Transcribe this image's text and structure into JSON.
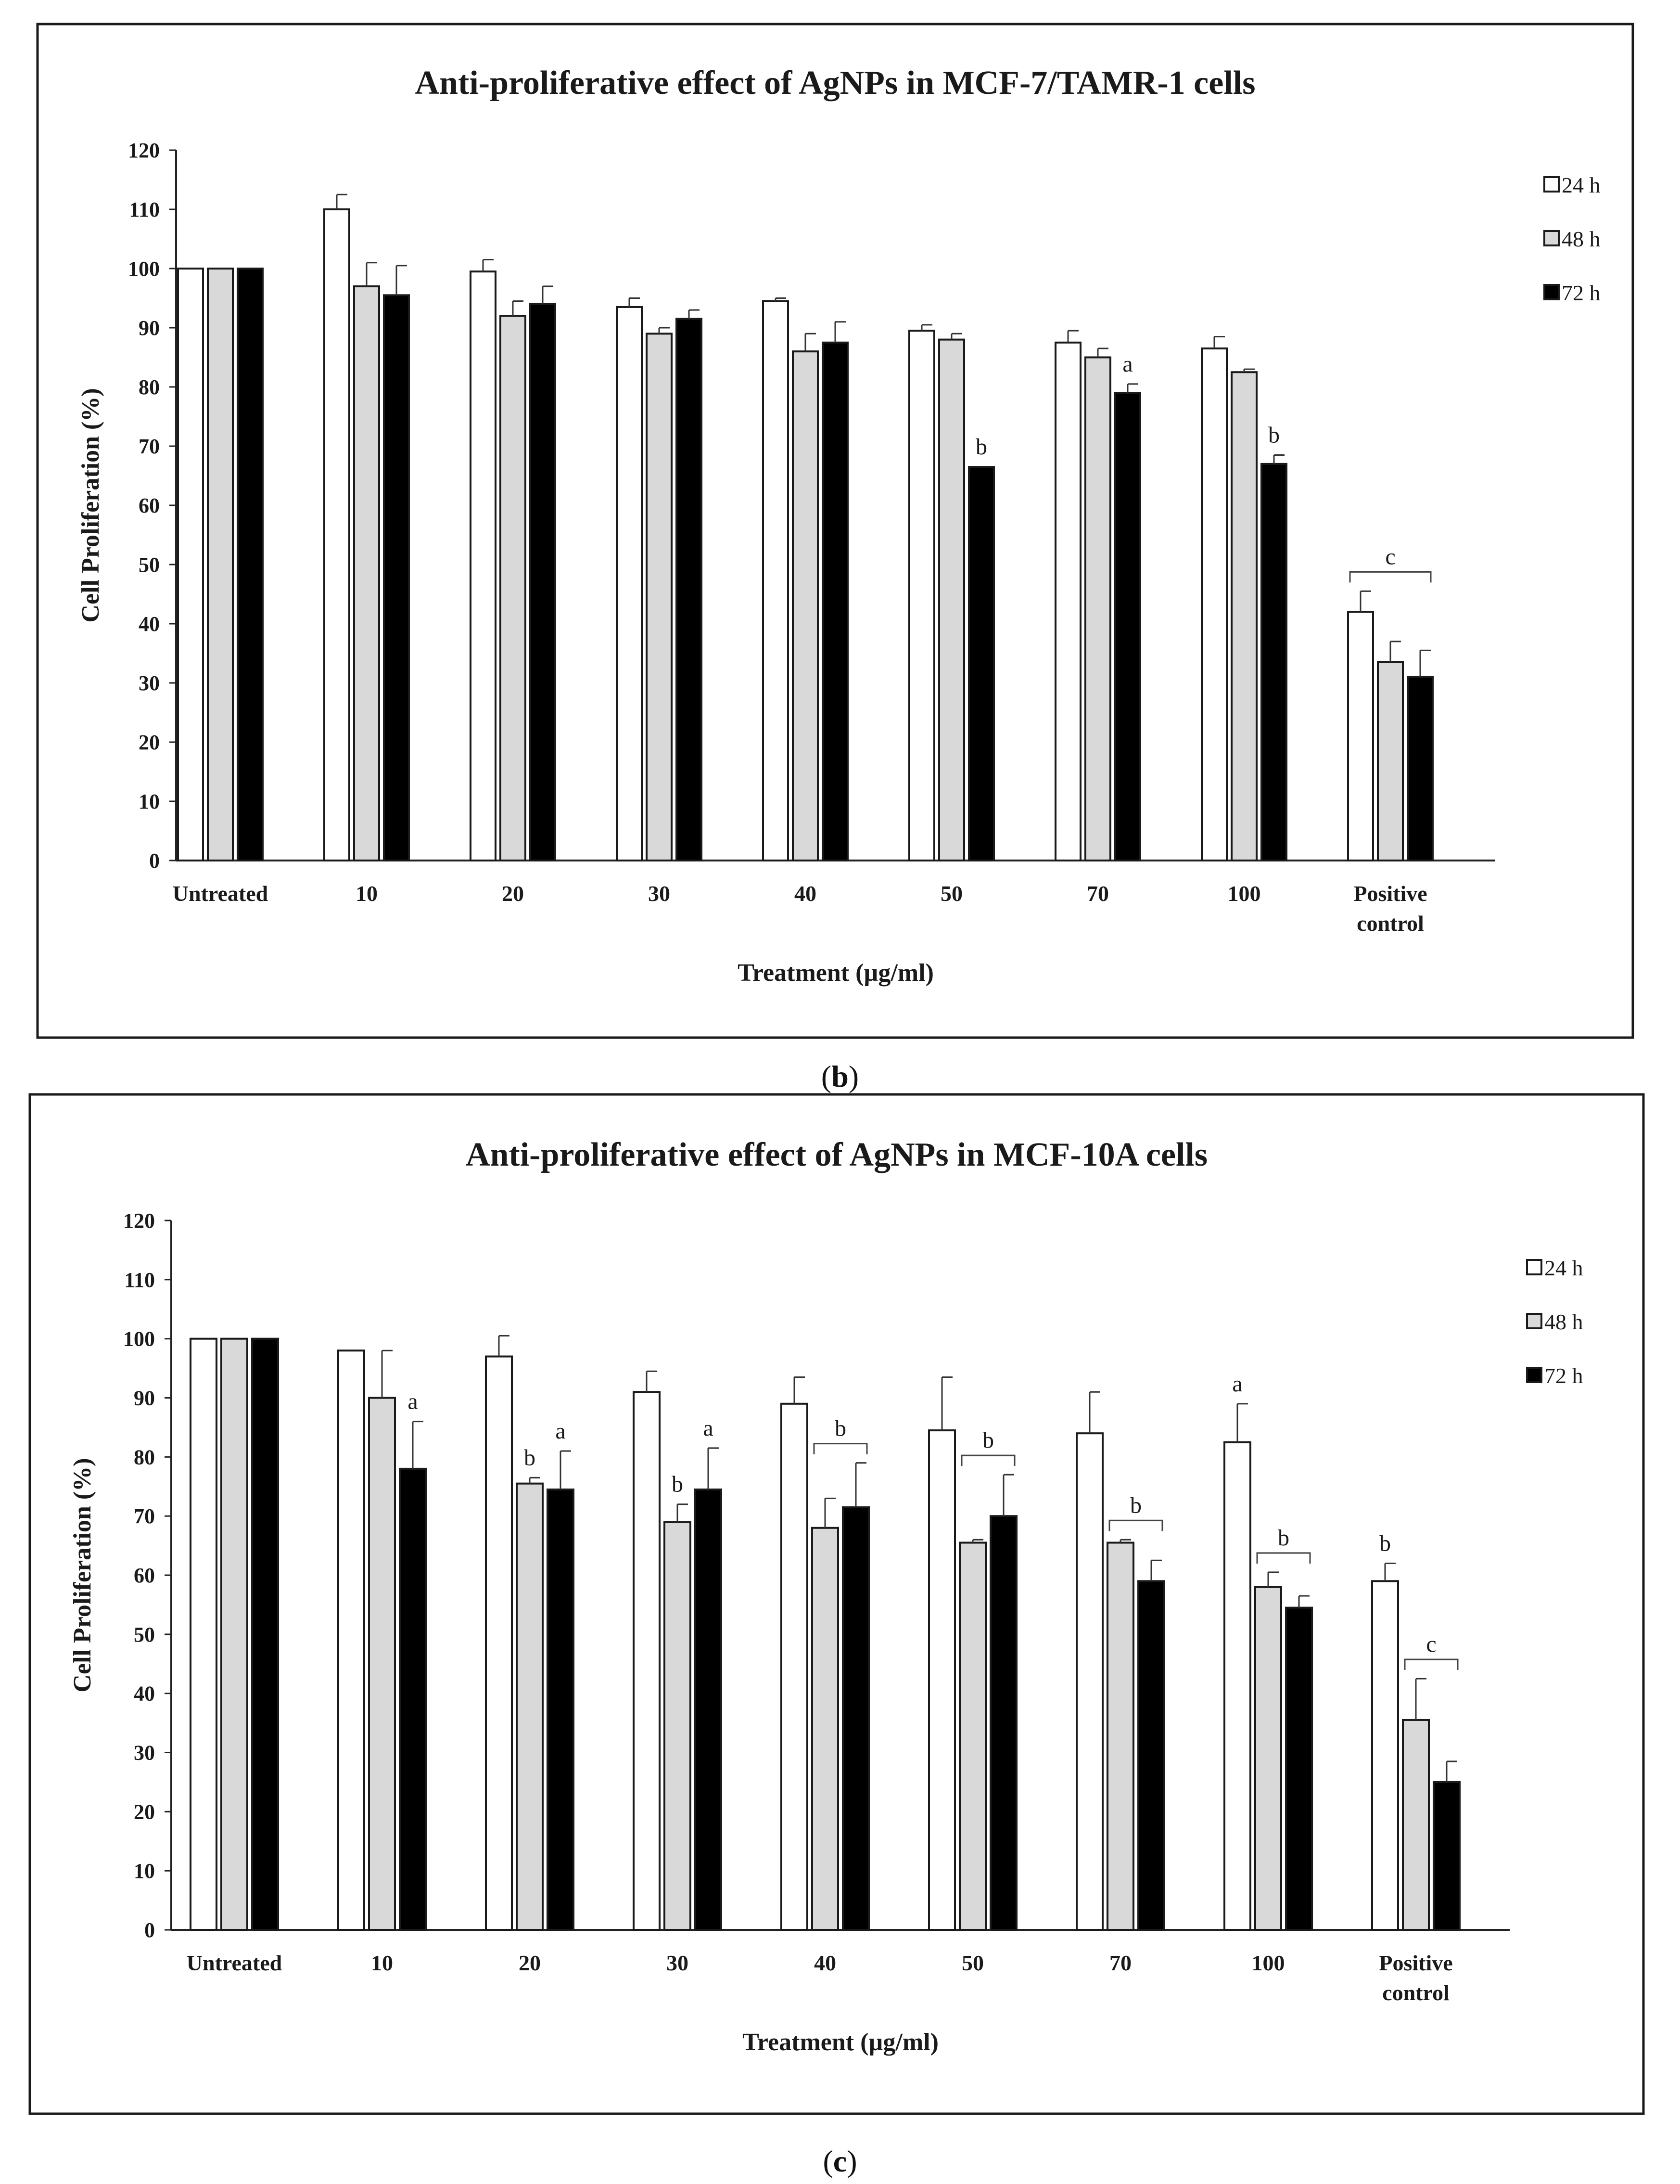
{
  "chart_data": [
    {
      "panel": "b",
      "type": "bar",
      "title": "Anti-proliferative effect of AgNPs in MCF-7/TAMR-1 cells",
      "xlabel": "Treatment (µg/ml)",
      "ylabel": "Cell Proliferation (%)",
      "ylim": [
        0,
        120
      ],
      "yticks": [
        0,
        10,
        20,
        30,
        40,
        50,
        60,
        70,
        80,
        90,
        100,
        110,
        120
      ],
      "categories": [
        "Untreated",
        "10",
        "20",
        "30",
        "40",
        "50",
        "70",
        "100",
        "Positive\ncontrol"
      ],
      "series": [
        {
          "name": "24 h",
          "color": "#ffffff",
          "values": [
            100,
            110,
            99.5,
            93.5,
            94.5,
            89.5,
            87.5,
            86.5,
            42
          ],
          "errors": [
            0,
            2.5,
            2,
            1.5,
            0.5,
            1,
            2,
            2,
            3.5
          ]
        },
        {
          "name": "48 h",
          "color": "#d9d9d9",
          "values": [
            100,
            97,
            92,
            89,
            86,
            88,
            85,
            82.5,
            33.5
          ],
          "errors": [
            0,
            4,
            2.5,
            1,
            3,
            1,
            1.5,
            0.5,
            3.5
          ]
        },
        {
          "name": "72 h",
          "color": "#000000",
          "values": [
            100,
            95.5,
            94,
            91.5,
            87.5,
            66.5,
            79,
            67,
            31
          ],
          "errors": [
            0,
            5,
            3,
            1.5,
            3.5,
            0,
            1.5,
            1.5,
            4.5
          ]
        }
      ],
      "legend": "right",
      "annotations": [
        {
          "text": "a",
          "category": "70",
          "series": "72 h"
        },
        {
          "text": "b",
          "category": "50",
          "series": "72 h"
        },
        {
          "text": "b",
          "category": "100",
          "series": "72 h"
        },
        {
          "text": "c",
          "category": "Positive\ncontrol",
          "series": "all",
          "bracket": true
        }
      ]
    },
    {
      "panel": "c",
      "type": "bar",
      "title": "Anti-proliferative effect of AgNPs in MCF-10A cells",
      "xlabel": "Treatment (µg/ml)",
      "ylabel": "Cell Proliferation (%)",
      "ylim": [
        0,
        120
      ],
      "yticks": [
        0,
        10,
        20,
        30,
        40,
        50,
        60,
        70,
        80,
        90,
        100,
        110,
        120
      ],
      "categories": [
        "Untreated",
        "10",
        "20",
        "30",
        "40",
        "50",
        "70",
        "100",
        "Positive\ncontrol"
      ],
      "series": [
        {
          "name": "24 h",
          "color": "#ffffff",
          "values": [
            100,
            98,
            97,
            91,
            89,
            84.5,
            84,
            82.5,
            59
          ],
          "errors": [
            0,
            0,
            3.5,
            3.5,
            4.5,
            9,
            7,
            6.5,
            3
          ]
        },
        {
          "name": "48 h",
          "color": "#d9d9d9",
          "values": [
            100,
            90,
            75.5,
            69,
            68,
            65.5,
            65.5,
            58,
            35.5
          ],
          "errors": [
            0,
            8,
            1,
            3,
            5,
            0.5,
            0.5,
            2.5,
            7
          ]
        },
        {
          "name": "72 h",
          "color": "#000000",
          "values": [
            100,
            78,
            74.5,
            74.5,
            71.5,
            70,
            59,
            54.5,
            25
          ],
          "errors": [
            0,
            8,
            6.5,
            7,
            7.5,
            7,
            3.5,
            2,
            3.5
          ]
        }
      ],
      "legend": "right",
      "annotations": [
        {
          "text": "a",
          "category": "10",
          "series": "72 h"
        },
        {
          "text": "b",
          "category": "20",
          "series": "48 h"
        },
        {
          "text": "a",
          "category": "20",
          "series": "72 h"
        },
        {
          "text": "b",
          "category": "30",
          "series": "48 h"
        },
        {
          "text": "a",
          "category": "30",
          "series": "72 h"
        },
        {
          "text": "b",
          "category": "40",
          "series": "48 h+72 h",
          "bracket": true
        },
        {
          "text": "b",
          "category": "50",
          "series": "48 h+72 h",
          "bracket": true
        },
        {
          "text": "b",
          "category": "70",
          "series": "48 h+72 h",
          "bracket": true
        },
        {
          "text": "a",
          "category": "100",
          "series": "24 h"
        },
        {
          "text": "b",
          "category": "100",
          "series": "48 h+72 h",
          "bracket": true
        },
        {
          "text": "b",
          "category": "Positive\ncontrol",
          "series": "24 h"
        },
        {
          "text": "c",
          "category": "Positive\ncontrol",
          "series": "48 h+72 h",
          "bracket": true
        }
      ]
    }
  ],
  "captions": {
    "b": {
      "open": "(",
      "letter": "b",
      "close": ")"
    },
    "c": {
      "open": "(",
      "letter": "c",
      "close": ")"
    }
  }
}
